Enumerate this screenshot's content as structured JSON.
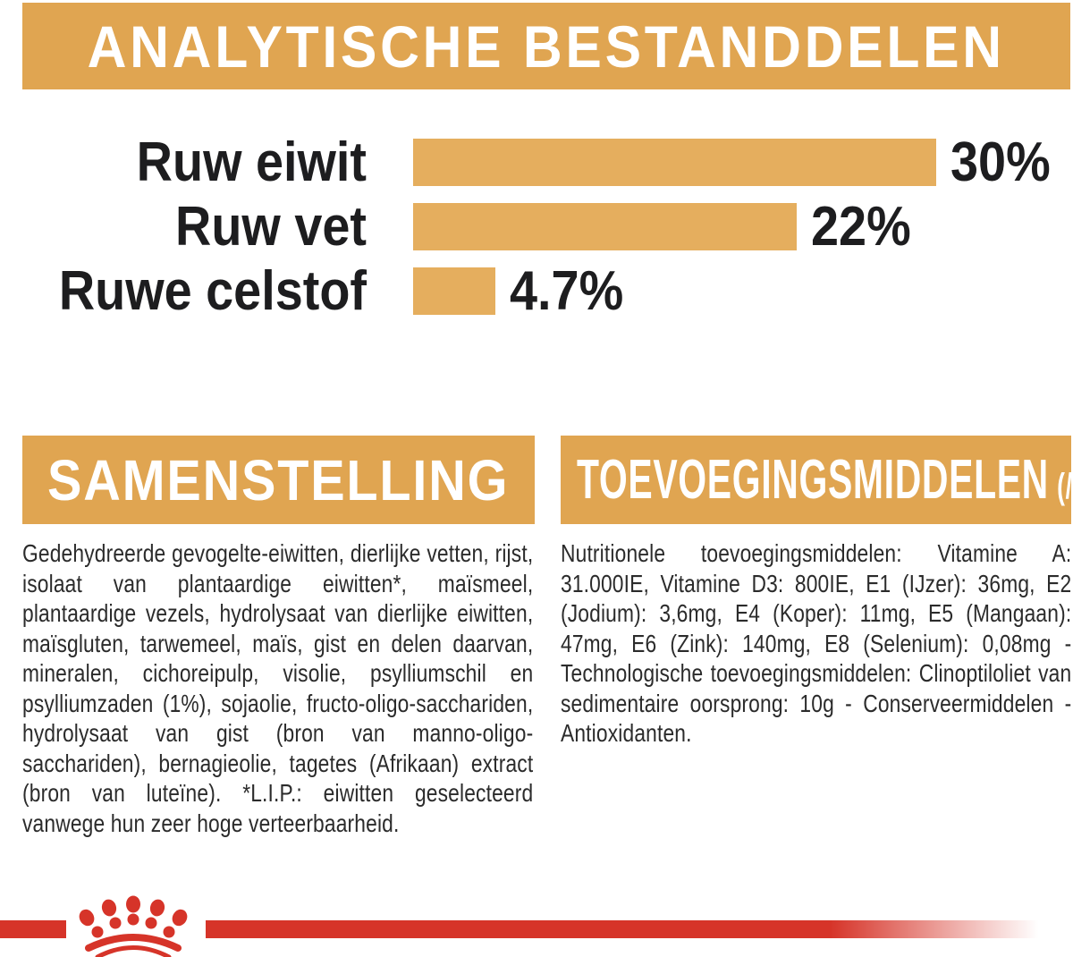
{
  "colors": {
    "gold": "#E0A551",
    "bar_gold": "#E5AE5E",
    "red": "#D63429",
    "body_text": "#2B2B2B",
    "heading_text": "#FFFFFF",
    "chart_text": "#1D1D1F"
  },
  "header": {
    "title": "ANALYTISCHE BESTANDDELEN"
  },
  "chart_data": {
    "type": "bar",
    "orientation": "horizontal",
    "title": "ANALYTISCHE BESTANDDELEN",
    "categories": [
      "Ruw eiwit",
      "Ruw vet",
      "Ruwe celstof"
    ],
    "values": [
      30,
      22,
      4.7
    ],
    "value_labels": [
      "30%",
      "22%",
      "4.7%"
    ],
    "unit": "%",
    "xlim": [
      0,
      38
    ],
    "grid": false,
    "legend": false,
    "bar_color": "#E5AE5E"
  },
  "composition": {
    "title": "SAMENSTELLING",
    "body": "Gedehydreerde gevogelte-eiwitten, dierlijke vetten, rijst, isolaat van plantaardige eiwitten*, maïsmeel, plantaardige vezels, hydrolysaat van dierlijke eiwitten, maïsgluten, tarwemeel, maïs, gist en delen daarvan, mineralen, cichoreipulp, visolie, psylliumschil en psylliumzaden (1%), sojaolie, fructo-oligo-sacchariden, hydrolysaat van gist (bron van manno-oligo-sacchariden), bernagieolie, tagetes (Afrikaan) extract (bron van luteïne). *L.I.P.: eiwitten geselecteerd vanwege hun zeer hoge verteerbaarheid."
  },
  "additives": {
    "title": "TOEVOEGINGSMIDDELEN",
    "title_suffix": "(/kg)",
    "body": "Nutritionele toevoegingsmiddelen: Vitamine A: 31.000IE, Vitamine D3: 800IE, E1 (IJzer): 36mg, E2 (Jodium): 3,6mg, E4 (Koper): 11mg, E5 (Mangaan): 47mg, E6 (Zink): 140mg, E8 (Selenium): 0,08mg - Technologische toevoegingsmiddelen: Clinoptiloliet van sedimentaire oorsprong: 10g - Conserveermiddelen - Antioxidanten."
  },
  "footer": {
    "brand_logo": "royal-canin-crown-logo"
  }
}
